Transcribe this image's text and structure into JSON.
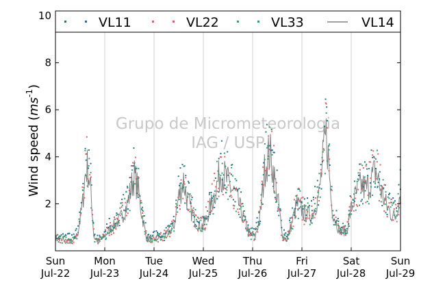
{
  "chart_data": {
    "type": "scatter",
    "ylabel": "Wind speed (",
    "ylabel_unit": "ms",
    "ylabel_exp": "-1",
    "ylabel_close": ")",
    "ylim": [
      0,
      10
    ],
    "yticks": [
      2,
      4,
      6,
      8,
      10
    ],
    "xlim": [
      0,
      7
    ],
    "x_unit": "days since Sun Jul-22 00:00",
    "xticks": [
      {
        "x": 0,
        "day": "Sun",
        "date": "Jul-22"
      },
      {
        "x": 1,
        "day": "Mon",
        "date": "Jul-23"
      },
      {
        "x": 2,
        "day": "Tue",
        "date": "Jul-24"
      },
      {
        "x": 3,
        "day": "Wed",
        "date": "Jul-25"
      },
      {
        "x": 4,
        "day": "Thu",
        "date": "Jul-26"
      },
      {
        "x": 5,
        "day": "Fri",
        "date": "Jul-27"
      },
      {
        "x": 6,
        "day": "Sat",
        "date": "Jul-28"
      },
      {
        "x": 7,
        "day": "Sun",
        "date": "Jul-29"
      }
    ],
    "vertical_grid": true,
    "legend_position": "top, single row above plot",
    "watermark": [
      "Grupo de Micrometeorologia",
      "IAG / USP"
    ],
    "series": [
      {
        "name": "VL11",
        "style": "dots",
        "color": "#1f6f8b"
      },
      {
        "name": "VL22",
        "style": "dots",
        "color": "#e06060"
      },
      {
        "name": "VL33",
        "style": "dots",
        "color": "#2e9e6e"
      },
      {
        "name": "VL14",
        "style": "line",
        "color": "#808080"
      }
    ],
    "profile": {
      "x": [
        0.0,
        0.2,
        0.35,
        0.45,
        0.55,
        0.6,
        0.65,
        0.72,
        0.78,
        0.85,
        0.95,
        1.1,
        1.3,
        1.45,
        1.55,
        1.6,
        1.68,
        1.75,
        1.85,
        2.0,
        2.2,
        2.4,
        2.5,
        2.6,
        2.65,
        2.75,
        2.85,
        2.95,
        3.05,
        3.2,
        3.35,
        3.45,
        3.55,
        3.65,
        3.75,
        3.85,
        3.95,
        4.05,
        4.15,
        4.25,
        4.35,
        4.45,
        4.55,
        4.6,
        4.7,
        4.8,
        4.9,
        5.05,
        5.2,
        5.35,
        5.45,
        5.5,
        5.55,
        5.6,
        5.65,
        5.75,
        5.9,
        6.0,
        6.1,
        6.2,
        6.3,
        6.4,
        6.5,
        6.6,
        6.7,
        6.8,
        6.9,
        7.0
      ],
      "y": [
        0.5,
        0.45,
        0.4,
        0.7,
        2.0,
        3.2,
        3.6,
        2.5,
        0.6,
        0.4,
        0.5,
        0.9,
        1.3,
        1.9,
        2.8,
        3.2,
        2.6,
        1.6,
        0.5,
        0.5,
        0.6,
        1.0,
        2.3,
        3.0,
        2.4,
        1.7,
        1.2,
        1.0,
        1.3,
        2.2,
        3.4,
        3.1,
        2.7,
        2.4,
        1.8,
        1.2,
        0.7,
        0.6,
        1.4,
        3.6,
        4.2,
        3.0,
        1.6,
        0.6,
        0.5,
        1.2,
        2.0,
        1.6,
        1.5,
        2.4,
        4.3,
        5.0,
        3.5,
        2.0,
        1.5,
        0.9,
        0.8,
        1.8,
        2.4,
        2.8,
        2.6,
        3.0,
        3.4,
        2.6,
        2.0,
        1.6,
        1.4,
        2.6
      ]
    },
    "seed": 7
  },
  "legend": {
    "items": [
      {
        "label": "VL11"
      },
      {
        "label": "VL22"
      },
      {
        "label": "VL33"
      },
      {
        "label": "VL14"
      }
    ]
  }
}
